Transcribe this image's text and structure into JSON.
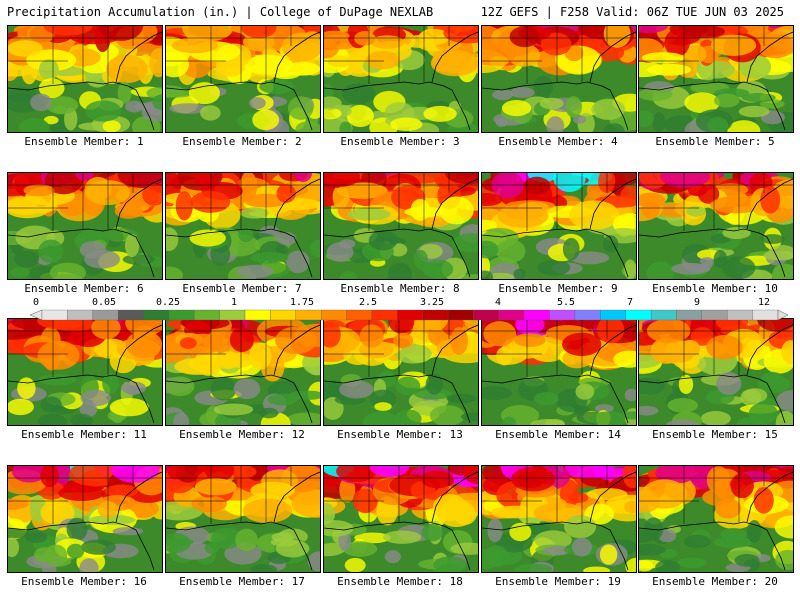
{
  "header": {
    "left": "Precipitation Accumulation (in.) | College of DuPage NEXLAB",
    "right": "12Z GEFS | F258 Valid: 06Z TUE JUN 03 2025"
  },
  "members": [
    {
      "label": "Ensemble Member: 1",
      "intensity": 0.55,
      "north": 0.8
    },
    {
      "label": "Ensemble Member: 2",
      "intensity": 0.5,
      "north": 0.85
    },
    {
      "label": "Ensemble Member: 3",
      "intensity": 0.45,
      "north": 0.7
    },
    {
      "label": "Ensemble Member: 4",
      "intensity": 0.55,
      "north": 0.6
    },
    {
      "label": "Ensemble Member: 5",
      "intensity": 0.55,
      "north": 0.75
    },
    {
      "label": "Ensemble Member: 6",
      "intensity": 0.6,
      "north": 0.65
    },
    {
      "label": "Ensemble Member: 7",
      "intensity": 0.55,
      "north": 0.7
    },
    {
      "label": "Ensemble Member: 8",
      "intensity": 0.6,
      "north": 0.75
    },
    {
      "label": "Ensemble Member: 9",
      "intensity": 0.7,
      "north": 0.9
    },
    {
      "label": "Ensemble Member: 10",
      "intensity": 0.6,
      "north": 0.7
    },
    {
      "label": "Ensemble Member: 11",
      "intensity": 0.6,
      "north": 0.7
    },
    {
      "label": "Ensemble Member: 12",
      "intensity": 0.6,
      "north": 0.8
    },
    {
      "label": "Ensemble Member: 13",
      "intensity": 0.45,
      "north": 0.6
    },
    {
      "label": "Ensemble Member: 14",
      "intensity": 0.65,
      "north": 0.7
    },
    {
      "label": "Ensemble Member: 15",
      "intensity": 0.55,
      "north": 0.75
    },
    {
      "label": "Ensemble Member: 16",
      "intensity": 0.7,
      "north": 0.9
    },
    {
      "label": "Ensemble Member: 17",
      "intensity": 0.6,
      "north": 0.75
    },
    {
      "label": "Ensemble Member: 18",
      "intensity": 0.7,
      "north": 0.8
    },
    {
      "label": "Ensemble Member: 19",
      "intensity": 0.7,
      "north": 0.85
    },
    {
      "label": "Ensemble Member: 20",
      "intensity": 0.65,
      "north": 0.85
    }
  ],
  "colorbar": {
    "tick_labels": [
      "0",
      "0.05",
      "0.25",
      "1",
      "1.75",
      "2.5",
      "3.25",
      "4",
      "5.5",
      "7",
      "9",
      "12"
    ],
    "colors": [
      "#e6e6e6",
      "#bfbfbf",
      "#9a9a9a",
      "#5a5a5a",
      "#2e7d32",
      "#3c9a2e",
      "#66b32e",
      "#9ccc3c",
      "#ffff00",
      "#ffd700",
      "#ffb000",
      "#ff8c00",
      "#ff6000",
      "#ff3000",
      "#e00000",
      "#c00000",
      "#a00000",
      "#c0004a",
      "#e0008a",
      "#ff00ff",
      "#c050ff",
      "#8080ff",
      "#00c8ff",
      "#00ffff",
      "#40c8c8",
      "#8aa0a0",
      "#a0a0a0",
      "#c0c0c0",
      "#e0e0e0"
    ]
  }
}
